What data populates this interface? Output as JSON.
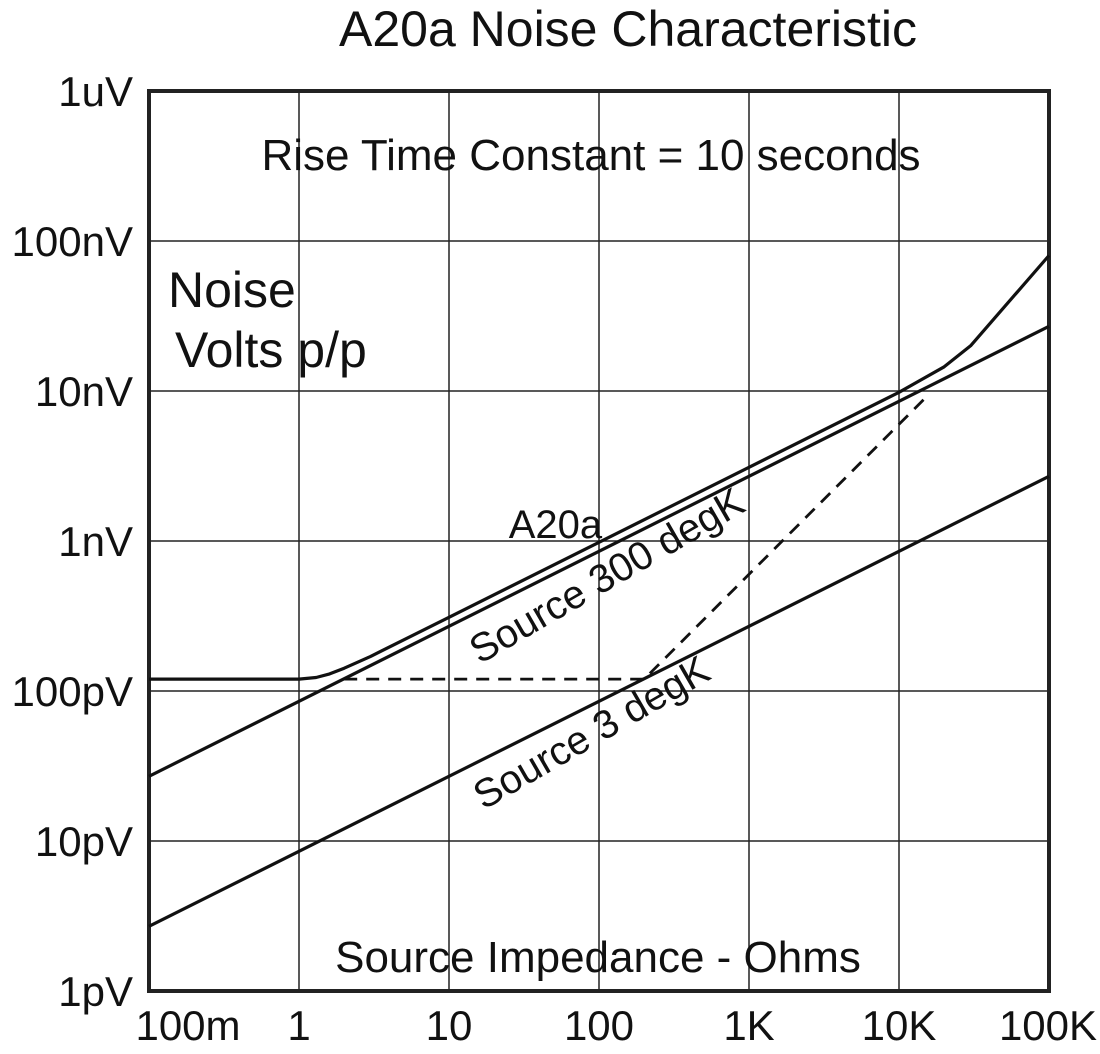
{
  "chart_data": {
    "type": "line",
    "title": "A20a Noise Characteristic",
    "subtitle": "Rise Time Constant = 10 seconds",
    "ylabel_line1": "Noise",
    "ylabel_line2": "Volts p/p",
    "xlabel": "Source Impedance - Ohms",
    "x_scale": "log",
    "y_scale": "log",
    "xlim": [
      0.1,
      100000
    ],
    "ylim": [
      1e-12,
      1e-06
    ],
    "grid": true,
    "x_ticks": [
      {
        "value": 0.1,
        "label": "100m"
      },
      {
        "value": 1,
        "label": "1"
      },
      {
        "value": 10,
        "label": "10"
      },
      {
        "value": 100,
        "label": "100"
      },
      {
        "value": 1000,
        "label": "1K"
      },
      {
        "value": 10000,
        "label": "10K"
      },
      {
        "value": 100000,
        "label": "100K"
      }
    ],
    "y_ticks": [
      {
        "value": 1e-12,
        "label": "1pV"
      },
      {
        "value": 1e-11,
        "label": "10pV"
      },
      {
        "value": 1e-10,
        "label": "100pV"
      },
      {
        "value": 1e-09,
        "label": "1nV"
      },
      {
        "value": 1e-08,
        "label": "10nV"
      },
      {
        "value": 1e-07,
        "label": "100nV"
      },
      {
        "value": 1e-06,
        "label": "1uV"
      }
    ],
    "series": [
      {
        "name": "A20a",
        "style": "solid",
        "points": [
          [
            0.1,
            1.2e-10
          ],
          [
            1,
            1.2e-10
          ],
          [
            1.3,
            1.23e-10
          ],
          [
            1.6,
            1.3e-10
          ],
          [
            2,
            1.42e-10
          ],
          [
            3,
            1.7e-10
          ],
          [
            10,
            3.1e-10
          ],
          [
            100,
            9.8e-10
          ],
          [
            1000,
            3.1e-09
          ],
          [
            10000,
            9.8e-09
          ],
          [
            20000,
            1.45e-08
          ],
          [
            30000,
            2e-08
          ],
          [
            100000,
            8e-08
          ]
        ]
      },
      {
        "name": "Source 300 degK",
        "style": "solid",
        "points": [
          [
            0.1,
            2.7e-11
          ],
          [
            100000,
            2.7e-08
          ]
        ]
      },
      {
        "name": "Source 3 degK",
        "style": "solid",
        "points": [
          [
            0.1,
            2.7e-12
          ],
          [
            100000,
            2.7e-09
          ]
        ]
      },
      {
        "name": "",
        "style": "dashed",
        "points": [
          [
            2,
            1.2e-10
          ],
          [
            200,
            1.2e-10
          ],
          [
            15000,
            9e-09
          ]
        ]
      }
    ],
    "annotations": [
      {
        "text": "A20a",
        "x": 25,
        "y": 1.05e-09,
        "rotate": 0
      },
      {
        "text": "Source 300 degK",
        "x": 16,
        "y": 1.5e-10,
        "rotate": -30
      },
      {
        "text": "Source 3 degK",
        "x": 17,
        "y": 1.6e-11,
        "rotate": -30
      }
    ]
  }
}
